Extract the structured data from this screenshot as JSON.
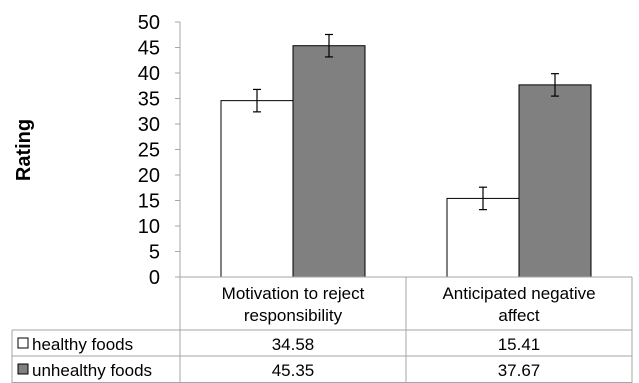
{
  "chart_data": {
    "type": "bar",
    "ylabel": "Rating",
    "ylim": [
      0,
      50
    ],
    "yticks": [
      "0",
      "5",
      "10",
      "15",
      "20",
      "25",
      "30",
      "35",
      "40",
      "45",
      "50"
    ],
    "categories": [
      {
        "line1": "Motivation to reject",
        "line2": "responsibility"
      },
      {
        "line1": "Anticipated negative",
        "line2": "affect"
      }
    ],
    "series": [
      {
        "name": "healthy foods",
        "color": "#ffffff",
        "values": [
          34.58,
          15.41
        ],
        "labels": [
          "34.58",
          "15.41"
        ],
        "error": [
          2.2,
          2.2
        ]
      },
      {
        "name": "unhealthy foods",
        "color": "#808080",
        "values": [
          45.35,
          37.67
        ],
        "labels": [
          "45.35",
          "37.67"
        ],
        "error": [
          2.2,
          2.2
        ]
      }
    ],
    "grid": false,
    "legend": "data-table"
  }
}
